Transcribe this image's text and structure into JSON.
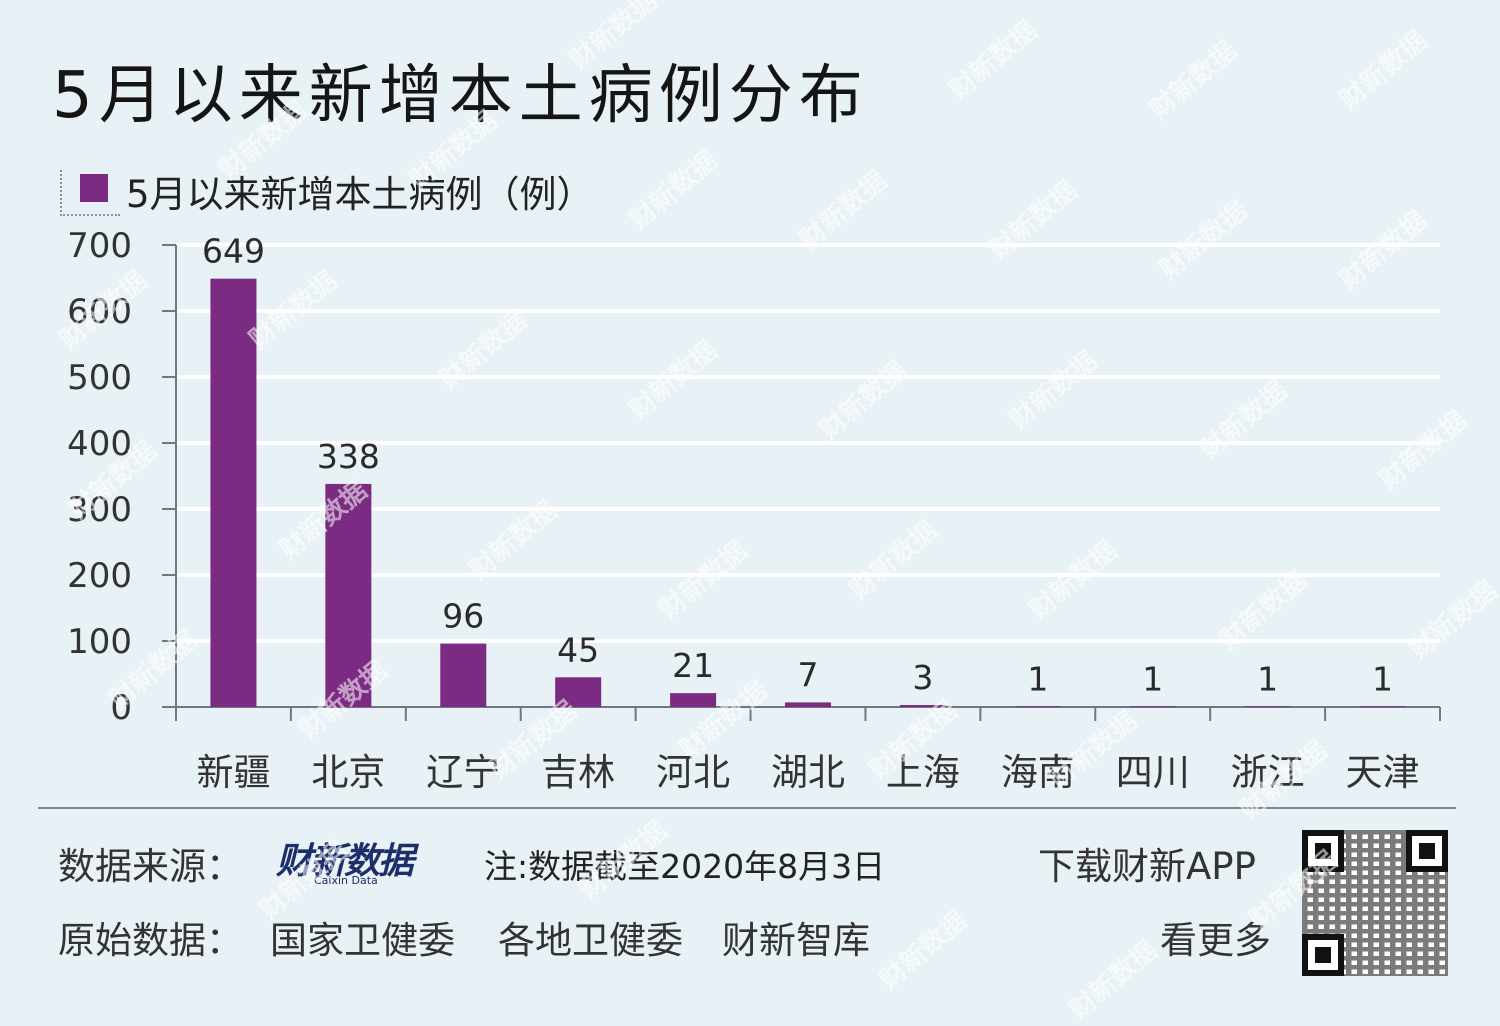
{
  "title": "5月以来新增本土病例分布",
  "legend": {
    "label": "5月以来新增本土病例（例）",
    "color": "#7b2b82"
  },
  "chart_data": {
    "type": "bar",
    "title": "5月以来新增本土病例分布",
    "categories": [
      "新疆",
      "北京",
      "辽宁",
      "吉林",
      "河北",
      "湖北",
      "上海",
      "海南",
      "四川",
      "浙江",
      "天津"
    ],
    "series": [
      {
        "name": "5月以来新增本土病例（例）",
        "values": [
          649,
          338,
          96,
          45,
          21,
          7,
          3,
          1,
          1,
          1,
          1
        ]
      }
    ],
    "ylim": [
      0,
      700
    ],
    "yticks": [
      "0",
      "100",
      "200",
      "300",
      "400",
      "500",
      "600",
      "700"
    ],
    "xlabel": "",
    "ylabel": "",
    "grid": true,
    "legend_position": "top-left",
    "bar_color": "#7b2b82",
    "grid_color": "#ffffff"
  },
  "footer": {
    "source_label": "数据来源：",
    "logo_main": "财新数据",
    "logo_sub": "Caixin Data",
    "note": "注:数据截至2020年8月3日",
    "original_label": "原始数据：",
    "original_sources": [
      "国家卫健委",
      "各地卫健委",
      "财新智库"
    ],
    "download": "下载财新APP",
    "see_more": "看更多"
  },
  "watermark_text": "财新数据",
  "qr_icon": "qr-code-icon"
}
